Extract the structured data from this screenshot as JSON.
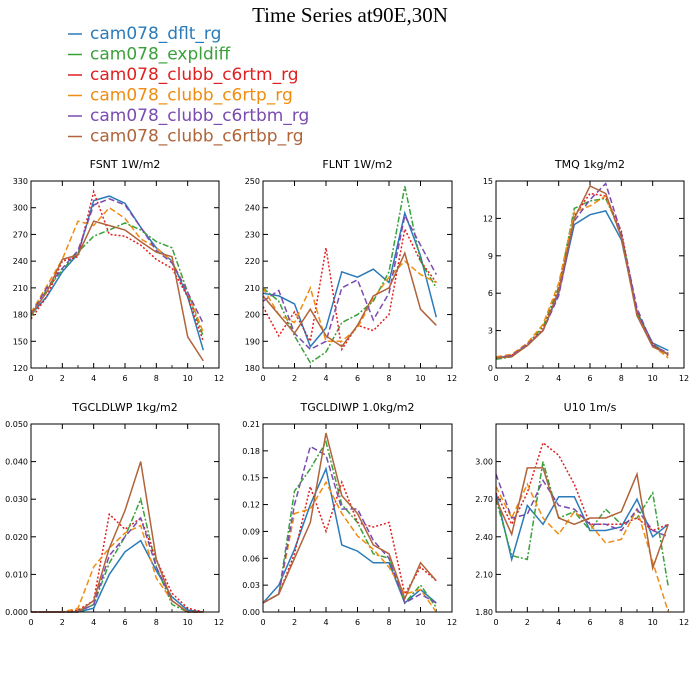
{
  "figure_title": "Time Series at90E,30N",
  "legend": [
    {
      "name": "cam078_dflt_rg",
      "color": "#2b7bba"
    },
    {
      "name": "cam078_expldiff",
      "color": "#3aa13a"
    },
    {
      "name": "cam078_clubb_c6rtm_rg",
      "color": "#e02020"
    },
    {
      "name": "cam078_clubb_c6rtp_rg",
      "color": "#f08c10"
    },
    {
      "name": "cam078_clubb_c6rtbm_rg",
      "color": "#7a4bb0"
    },
    {
      "name": "cam078_clubb_c6rtbp_rg",
      "color": "#b0643a"
    }
  ],
  "chart_data": [
    {
      "type": "line",
      "title": "FSNT   1W/m2",
      "xlim": [
        0,
        12
      ],
      "ylim": [
        120,
        330
      ],
      "xticks": [
        0,
        2,
        4,
        6,
        8,
        10,
        12
      ],
      "yticks": [
        120,
        150,
        180,
        210,
        240,
        270,
        300,
        330
      ],
      "ytick_labels": [
        "120",
        "150",
        "180",
        "210",
        "240",
        "270",
        "300",
        "330"
      ],
      "x": [
        0,
        1,
        2,
        3,
        4,
        5,
        6,
        7,
        8,
        9,
        10,
        11
      ],
      "series": [
        {
          "name": "cam078_dflt_rg",
          "style": "solid",
          "values": [
            180,
            200,
            228,
            248,
            308,
            313,
            305,
            278,
            255,
            240,
            200,
            140
          ]
        },
        {
          "name": "cam078_expldiff",
          "style": "dashdot",
          "values": [
            178,
            208,
            230,
            250,
            268,
            275,
            283,
            275,
            262,
            255,
            205,
            155
          ]
        },
        {
          "name": "cam078_clubb_c6rtm_rg",
          "style": "dotted",
          "values": [
            175,
            200,
            240,
            245,
            318,
            270,
            268,
            258,
            242,
            232,
            200,
            150
          ]
        },
        {
          "name": "cam078_clubb_c6rtp_rg",
          "style": "dashed",
          "values": [
            182,
            212,
            242,
            285,
            280,
            300,
            288,
            265,
            255,
            240,
            205,
            160
          ]
        },
        {
          "name": "cam078_clubb_c6rtbm_rg",
          "style": "dashed",
          "values": [
            180,
            210,
            232,
            252,
            303,
            310,
            303,
            278,
            252,
            238,
            205,
            170
          ]
        },
        {
          "name": "cam078_clubb_c6rtbp_rg",
          "style": "solid",
          "values": [
            180,
            205,
            242,
            247,
            285,
            280,
            275,
            262,
            250,
            245,
            155,
            128
          ]
        }
      ]
    },
    {
      "type": "line",
      "title": "FLNT   1W/m2",
      "xlim": [
        0,
        12
      ],
      "ylim": [
        180,
        250
      ],
      "xticks": [
        0,
        2,
        4,
        6,
        8,
        10,
        12
      ],
      "yticks": [
        180,
        190,
        200,
        210,
        220,
        230,
        240,
        250
      ],
      "ytick_labels": [
        "180",
        "190",
        "200",
        "210",
        "220",
        "230",
        "240",
        "250"
      ],
      "x": [
        0,
        1,
        2,
        3,
        4,
        5,
        6,
        7,
        8,
        9,
        10,
        11
      ],
      "series": [
        {
          "name": "cam078_dflt_rg",
          "style": "solid",
          "values": [
            208,
            207,
            204,
            188,
            195,
            216,
            214,
            217,
            212,
            238,
            222,
            199
          ]
        },
        {
          "name": "cam078_expldiff",
          "style": "dashdot",
          "values": [
            210,
            205,
            192,
            182,
            186,
            197,
            200,
            205,
            216,
            248,
            220,
            210
          ]
        },
        {
          "name": "cam078_clubb_c6rtm_rg",
          "style": "dotted",
          "values": [
            203,
            192,
            201,
            190,
            225,
            187,
            196,
            194,
            200,
            232,
            220,
            212
          ]
        },
        {
          "name": "cam078_clubb_c6rtp_rg",
          "style": "dashed",
          "values": [
            210,
            200,
            197,
            210,
            190,
            190,
            195,
            206,
            214,
            220,
            215,
            212
          ]
        },
        {
          "name": "cam078_clubb_c6rtbm_rg",
          "style": "dashed",
          "values": [
            205,
            209,
            193,
            187,
            190,
            210,
            213,
            198,
            208,
            237,
            226,
            215
          ]
        },
        {
          "name": "cam078_clubb_c6rtbp_rg",
          "style": "solid",
          "values": [
            207,
            200,
            193,
            202,
            192,
            188,
            196,
            207,
            210,
            223,
            202,
            196
          ]
        }
      ]
    },
    {
      "type": "line",
      "title": "TMQ   1kg/m2",
      "xlim": [
        0,
        12
      ],
      "ylim": [
        0,
        15
      ],
      "xticks": [
        0,
        2,
        4,
        6,
        8,
        10,
        12
      ],
      "yticks": [
        0,
        3,
        6,
        9,
        12,
        15
      ],
      "ytick_labels": [
        "0",
        "3",
        "6",
        "9",
        "12",
        "15"
      ],
      "x": [
        0,
        1,
        2,
        3,
        4,
        5,
        6,
        7,
        8,
        9,
        10,
        11
      ],
      "series": [
        {
          "name": "cam078_dflt_rg",
          "style": "solid",
          "values": [
            0.8,
            1.0,
            1.8,
            3.0,
            6.0,
            11.5,
            12.3,
            12.6,
            10.3,
            4.5,
            2.0,
            1.4
          ]
        },
        {
          "name": "cam078_expldiff",
          "style": "dashdot",
          "values": [
            0.7,
            0.9,
            1.9,
            3.3,
            6.5,
            12.8,
            13.4,
            13.6,
            10.8,
            4.5,
            1.9,
            1.1
          ]
        },
        {
          "name": "cam078_clubb_c6rtm_rg",
          "style": "dotted",
          "values": [
            0.8,
            1.0,
            1.9,
            3.1,
            6.3,
            12.2,
            14.0,
            13.8,
            11.0,
            4.5,
            1.9,
            1.0
          ]
        },
        {
          "name": "cam078_clubb_c6rtp_rg",
          "style": "dashed",
          "values": [
            0.9,
            1.1,
            2.0,
            3.5,
            6.8,
            12.5,
            13.0,
            13.8,
            10.5,
            4.2,
            1.8,
            0.8
          ]
        },
        {
          "name": "cam078_clubb_c6rtbm_rg",
          "style": "dashed",
          "values": [
            0.8,
            1.0,
            1.9,
            3.0,
            5.8,
            11.8,
            13.5,
            14.8,
            10.8,
            4.8,
            1.8,
            1.2
          ]
        },
        {
          "name": "cam078_clubb_c6rtbp_rg",
          "style": "solid",
          "values": [
            0.8,
            0.9,
            1.8,
            3.0,
            6.2,
            12.0,
            14.6,
            14.0,
            10.5,
            4.2,
            1.7,
            1.1
          ]
        }
      ]
    },
    {
      "type": "line",
      "title": "TGCLDLWP   1kg/m2",
      "xlim": [
        0,
        12
      ],
      "ylim": [
        0,
        0.05
      ],
      "xticks": [
        0,
        2,
        4,
        6,
        8,
        10,
        12
      ],
      "yticks": [
        0,
        0.01,
        0.02,
        0.03,
        0.04,
        0.05
      ],
      "ytick_labels": [
        "0.000",
        "0.010",
        "0.020",
        "0.030",
        "0.040",
        "0.050"
      ],
      "x": [
        0,
        1,
        2,
        3,
        4,
        5,
        6,
        7,
        8,
        9,
        10,
        11
      ],
      "series": [
        {
          "name": "cam078_dflt_rg",
          "style": "solid",
          "values": [
            0,
            0,
            0,
            0,
            0.001,
            0.01,
            0.016,
            0.019,
            0.011,
            0.004,
            0.0005,
            0
          ]
        },
        {
          "name": "cam078_expldiff",
          "style": "dashdot",
          "values": [
            0,
            0,
            0,
            0,
            0.002,
            0.013,
            0.02,
            0.03,
            0.012,
            0.002,
            0,
            0
          ]
        },
        {
          "name": "cam078_clubb_c6rtm_rg",
          "style": "dotted",
          "values": [
            0,
            0,
            0,
            0.0005,
            0.003,
            0.026,
            0.022,
            0.025,
            0.014,
            0.005,
            0.001,
            0
          ]
        },
        {
          "name": "cam078_clubb_c6rtp_rg",
          "style": "dashed",
          "values": [
            0,
            0,
            0,
            0.001,
            0.012,
            0.017,
            0.021,
            0.023,
            0.009,
            0.003,
            0,
            0
          ]
        },
        {
          "name": "cam078_clubb_c6rtbm_rg",
          "style": "dashed",
          "values": [
            0,
            0,
            0,
            0,
            0.002,
            0.015,
            0.02,
            0.025,
            0.012,
            0.003,
            0,
            0
          ]
        },
        {
          "name": "cam078_clubb_c6rtbp_rg",
          "style": "solid",
          "values": [
            0,
            0,
            0,
            0,
            0.003,
            0.017,
            0.027,
            0.04,
            0.014,
            0.003,
            0,
            0
          ]
        }
      ]
    },
    {
      "type": "line",
      "title": "TGCLDIWP   1.0kg/m2",
      "xlim": [
        0,
        12
      ],
      "ylim": [
        0,
        0.21
      ],
      "xticks": [
        0,
        2,
        4,
        6,
        8,
        10,
        12
      ],
      "yticks": [
        0,
        0.03,
        0.06,
        0.09,
        0.12,
        0.15,
        0.18,
        0.21
      ],
      "ytick_labels": [
        "0.00",
        "0.03",
        "0.06",
        "0.09",
        "0.12",
        "0.15",
        "0.18",
        "0.21"
      ],
      "x": [
        0,
        1,
        2,
        3,
        4,
        5,
        6,
        7,
        8,
        9,
        10,
        11
      ],
      "series": [
        {
          "name": "cam078_dflt_rg",
          "style": "solid",
          "values": [
            0.01,
            0.03,
            0.07,
            0.12,
            0.16,
            0.075,
            0.068,
            0.055,
            0.055,
            0.01,
            0.025,
            0.01
          ]
        },
        {
          "name": "cam078_expldiff",
          "style": "dashdot",
          "values": [
            0.01,
            0.02,
            0.135,
            0.16,
            0.19,
            0.12,
            0.1,
            0.065,
            0.06,
            0.01,
            0.03,
            0.005
          ]
        },
        {
          "name": "cam078_clubb_c6rtm_rg",
          "style": "dotted",
          "values": [
            0.01,
            0.02,
            0.065,
            0.14,
            0.09,
            0.145,
            0.1,
            0.095,
            0.1,
            0.02,
            0.05,
            0.035
          ]
        },
        {
          "name": "cam078_clubb_c6rtp_rg",
          "style": "dashed",
          "values": [
            0.01,
            0.02,
            0.11,
            0.115,
            0.145,
            0.11,
            0.085,
            0.07,
            0.05,
            0.02,
            0.025,
            0
          ]
        },
        {
          "name": "cam078_clubb_c6rtbm_rg",
          "style": "dashed",
          "values": [
            0.01,
            0.02,
            0.12,
            0.185,
            0.175,
            0.115,
            0.115,
            0.08,
            0.06,
            0.01,
            0.02,
            0.01
          ]
        },
        {
          "name": "cam078_clubb_c6rtbp_rg",
          "style": "solid",
          "values": [
            0.01,
            0.02,
            0.06,
            0.1,
            0.2,
            0.13,
            0.11,
            0.075,
            0.065,
            0.015,
            0.055,
            0.035
          ]
        }
      ]
    },
    {
      "type": "line",
      "title": "U10   1m/s",
      "xlim": [
        0,
        12
      ],
      "ylim": [
        1.8,
        3.3
      ],
      "xticks": [
        0,
        2,
        4,
        6,
        8,
        10,
        12
      ],
      "yticks": [
        1.8,
        2.1,
        2.4,
        2.7,
        3.0
      ],
      "ytick_labels": [
        "1.80",
        "2.10",
        "2.40",
        "2.70",
        "3.00"
      ],
      "x": [
        0,
        1,
        2,
        3,
        4,
        5,
        6,
        7,
        8,
        9,
        10,
        11
      ],
      "series": [
        {
          "name": "cam078_dflt_rg",
          "style": "solid",
          "values": [
            2.75,
            2.22,
            2.65,
            2.5,
            2.72,
            2.72,
            2.45,
            2.45,
            2.48,
            2.7,
            2.4,
            2.5
          ]
        },
        {
          "name": "cam078_expldiff",
          "style": "dashdot",
          "values": [
            2.7,
            2.25,
            2.22,
            3.0,
            2.55,
            2.6,
            2.45,
            2.62,
            2.5,
            2.55,
            2.75,
            2.0
          ]
        },
        {
          "name": "cam078_clubb_c6rtm_rg",
          "style": "dotted",
          "values": [
            2.75,
            2.5,
            2.75,
            3.15,
            3.05,
            2.82,
            2.5,
            2.5,
            2.5,
            2.55,
            2.45,
            2.5
          ]
        },
        {
          "name": "cam078_clubb_c6rtp_rg",
          "style": "dashed",
          "values": [
            2.8,
            2.55,
            2.82,
            2.55,
            2.42,
            2.6,
            2.5,
            2.35,
            2.38,
            2.62,
            2.2,
            1.8
          ]
        },
        {
          "name": "cam078_clubb_c6rtbm_rg",
          "style": "dashed",
          "values": [
            2.9,
            2.55,
            2.58,
            2.85,
            2.65,
            2.62,
            2.5,
            2.5,
            2.45,
            2.62,
            2.45,
            2.4
          ]
        },
        {
          "name": "cam078_clubb_c6rtbp_rg",
          "style": "solid",
          "values": [
            2.7,
            2.42,
            2.95,
            2.95,
            2.55,
            2.5,
            2.55,
            2.55,
            2.6,
            2.9,
            2.15,
            2.5
          ]
        }
      ]
    }
  ]
}
